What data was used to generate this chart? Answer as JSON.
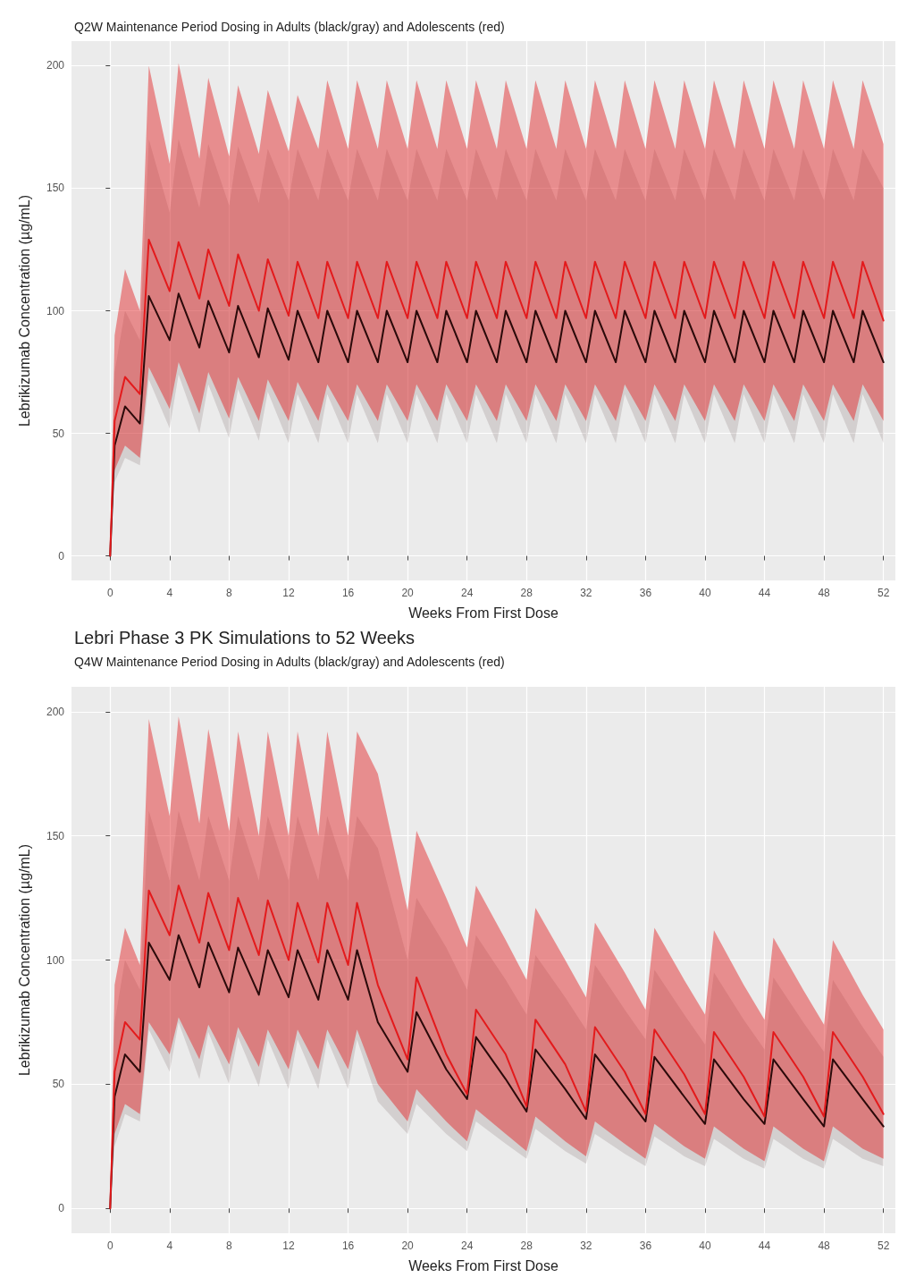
{
  "chart_data": [
    {
      "type": "line",
      "subtitle": "Q2W Maintenance Period Dosing in Adults (black/gray) and Adolescents (red)",
      "xlabel": "Weeks From First Dose",
      "ylabel": "Lebrikizumab Concentration (µg/mL)",
      "xlim": [
        -2.6,
        52.8
      ],
      "ylim": [
        -10,
        210
      ],
      "xticks": [
        0,
        4,
        8,
        12,
        16,
        20,
        24,
        28,
        32,
        36,
        40,
        44,
        48,
        52
      ],
      "yticks": [
        0,
        50,
        100,
        150,
        200
      ],
      "grid": true,
      "x": [
        0,
        0.3,
        1,
        2,
        2.6,
        4,
        4.6,
        6,
        6.6,
        8,
        8.6,
        10,
        10.6,
        12,
        12.6,
        14,
        14.6,
        16,
        16.6,
        18,
        18.6,
        20,
        20.6,
        22,
        22.6,
        24,
        24.6,
        26,
        26.6,
        28,
        28.6,
        30,
        30.6,
        32,
        32.6,
        34,
        34.6,
        36,
        36.6,
        38,
        38.6,
        40,
        40.6,
        42,
        42.6,
        44,
        44.6,
        46,
        46.6,
        48,
        48.6,
        50,
        50.6,
        52
      ],
      "series": [
        {
          "color": "#2b0a0a",
          "values": [
            0,
            45,
            61,
            54,
            106,
            88,
            107,
            85,
            104,
            83,
            102,
            81,
            101,
            80,
            100,
            79,
            100,
            79,
            100,
            79,
            100,
            79,
            100,
            79,
            100,
            79,
            100,
            79,
            100,
            79,
            100,
            79,
            100,
            79,
            100,
            79,
            100,
            79,
            100,
            79,
            100,
            79,
            100,
            79,
            100,
            79,
            100,
            79,
            100,
            79,
            100,
            79,
            100,
            79
          ],
          "lower": [
            0,
            30,
            40,
            37,
            72,
            52,
            74,
            50,
            70,
            48,
            68,
            47,
            67,
            46,
            66,
            46,
            66,
            46,
            66,
            46,
            66,
            46,
            66,
            46,
            66,
            46,
            66,
            46,
            66,
            46,
            66,
            46,
            66,
            46,
            66,
            46,
            66,
            46,
            66,
            46,
            66,
            46,
            66,
            46,
            66,
            46,
            66,
            46,
            66,
            46,
            66,
            46,
            66,
            46
          ],
          "upper": [
            0,
            75,
            100,
            88,
            170,
            140,
            170,
            142,
            168,
            143,
            167,
            144,
            166,
            145,
            166,
            145,
            166,
            145,
            166,
            145,
            166,
            145,
            166,
            145,
            166,
            145,
            166,
            145,
            166,
            145,
            166,
            145,
            166,
            145,
            166,
            145,
            166,
            145,
            166,
            145,
            166,
            145,
            166,
            145,
            166,
            145,
            166,
            145,
            166,
            145,
            166,
            145,
            166,
            150
          ]
        },
        {
          "color": "#e31a1c",
          "values": [
            0,
            55,
            73,
            66,
            129,
            108,
            128,
            105,
            125,
            102,
            123,
            100,
            121,
            98,
            120,
            97,
            120,
            97,
            120,
            97,
            120,
            97,
            120,
            97,
            120,
            97,
            120,
            97,
            120,
            97,
            120,
            97,
            120,
            97,
            120,
            97,
            120,
            97,
            120,
            97,
            120,
            97,
            120,
            97,
            120,
            97,
            120,
            97,
            120,
            97,
            120,
            97,
            120,
            96
          ],
          "lower": [
            0,
            35,
            45,
            40,
            77,
            60,
            79,
            58,
            75,
            56,
            73,
            55,
            72,
            55,
            71,
            55,
            70,
            55,
            70,
            55,
            70,
            55,
            70,
            55,
            70,
            55,
            70,
            55,
            70,
            55,
            70,
            55,
            70,
            55,
            70,
            55,
            70,
            55,
            70,
            55,
            70,
            55,
            70,
            55,
            70,
            55,
            70,
            55,
            70,
            55,
            70,
            55,
            70,
            55
          ],
          "upper": [
            0,
            90,
            117,
            100,
            200,
            160,
            201,
            162,
            195,
            163,
            192,
            164,
            190,
            165,
            188,
            166,
            194,
            166,
            194,
            166,
            194,
            166,
            194,
            166,
            194,
            166,
            194,
            166,
            194,
            166,
            194,
            166,
            194,
            166,
            194,
            166,
            194,
            166,
            194,
            166,
            194,
            166,
            194,
            166,
            194,
            166,
            194,
            166,
            194,
            166,
            194,
            166,
            194,
            168
          ]
        }
      ]
    },
    {
      "type": "line",
      "title": "Lebri Phase 3 PK Simulations to 52 Weeks",
      "subtitle": "Q4W Maintenance Period Dosing in Adults (black/gray) and Adolescents (red)",
      "xlabel": "Weeks From First Dose",
      "ylabel": "Lebrikizumab Concentration (µg/mL)",
      "xlim": [
        -2.6,
        52.8
      ],
      "ylim": [
        -10,
        210
      ],
      "xticks": [
        0,
        4,
        8,
        12,
        16,
        20,
        24,
        28,
        32,
        36,
        40,
        44,
        48,
        52
      ],
      "yticks": [
        0,
        50,
        100,
        150,
        200
      ],
      "grid": true,
      "x": [
        0,
        0.3,
        1,
        2,
        2.6,
        4,
        4.6,
        6,
        6.6,
        8,
        8.6,
        10,
        10.6,
        12,
        12.6,
        14,
        14.6,
        16,
        16.6,
        18,
        20,
        20.6,
        22.6,
        24,
        24.6,
        26.6,
        28,
        28.6,
        30.6,
        32,
        32.6,
        34.6,
        36,
        36.6,
        38.6,
        40,
        40.6,
        42.6,
        44,
        44.6,
        46.6,
        48,
        48.6,
        50.6,
        52
      ],
      "series": [
        {
          "color": "#2b0a0a",
          "values": [
            0,
            45,
            62,
            55,
            107,
            92,
            110,
            89,
            107,
            87,
            105,
            86,
            104,
            85,
            104,
            84,
            104,
            84,
            104,
            75,
            55,
            79,
            56,
            44,
            69,
            52,
            39,
            64,
            48,
            36,
            62,
            46,
            35,
            61,
            45,
            34,
            60,
            44,
            34,
            60,
            44,
            33,
            60,
            44,
            33
          ],
          "lower": [
            0,
            25,
            38,
            35,
            72,
            55,
            75,
            52,
            71,
            50,
            69,
            49,
            68,
            48,
            68,
            48,
            68,
            48,
            68,
            43,
            30,
            42,
            30,
            23,
            35,
            26,
            20,
            32,
            23,
            18,
            30,
            22,
            17,
            29,
            21,
            17,
            28,
            20,
            16,
            28,
            20,
            16,
            28,
            20,
            17
          ],
          "upper": [
            0,
            75,
            100,
            88,
            160,
            132,
            160,
            132,
            158,
            132,
            158,
            132,
            158,
            132,
            158,
            132,
            158,
            132,
            158,
            145,
            100,
            125,
            105,
            88,
            110,
            92,
            78,
            102,
            85,
            72,
            98,
            80,
            68,
            96,
            78,
            66,
            95,
            76,
            64,
            93,
            75,
            63,
            92,
            73,
            61
          ]
        },
        {
          "color": "#e31a1c",
          "values": [
            0,
            55,
            75,
            68,
            128,
            110,
            130,
            107,
            127,
            104,
            125,
            102,
            124,
            100,
            123,
            99,
            123,
            98,
            123,
            90,
            60,
            93,
            62,
            46,
            80,
            62,
            41,
            76,
            58,
            39,
            73,
            55,
            38,
            72,
            54,
            38,
            71,
            53,
            37,
            71,
            53,
            37,
            71,
            53,
            38
          ],
          "lower": [
            0,
            30,
            42,
            38,
            75,
            62,
            77,
            60,
            74,
            58,
            73,
            57,
            72,
            56,
            72,
            56,
            72,
            56,
            72,
            50,
            35,
            48,
            35,
            27,
            40,
            30,
            23,
            37,
            27,
            21,
            35,
            26,
            20,
            34,
            25,
            20,
            33,
            24,
            19,
            33,
            24,
            19,
            33,
            24,
            20
          ],
          "upper": [
            0,
            90,
            113,
            98,
            197,
            158,
            198,
            155,
            193,
            152,
            192,
            150,
            192,
            150,
            192,
            150,
            192,
            150,
            192,
            175,
            120,
            152,
            125,
            105,
            130,
            108,
            92,
            121,
            100,
            85,
            115,
            95,
            80,
            113,
            92,
            78,
            112,
            90,
            76,
            109,
            88,
            74,
            108,
            86,
            72
          ]
        }
      ]
    }
  ]
}
